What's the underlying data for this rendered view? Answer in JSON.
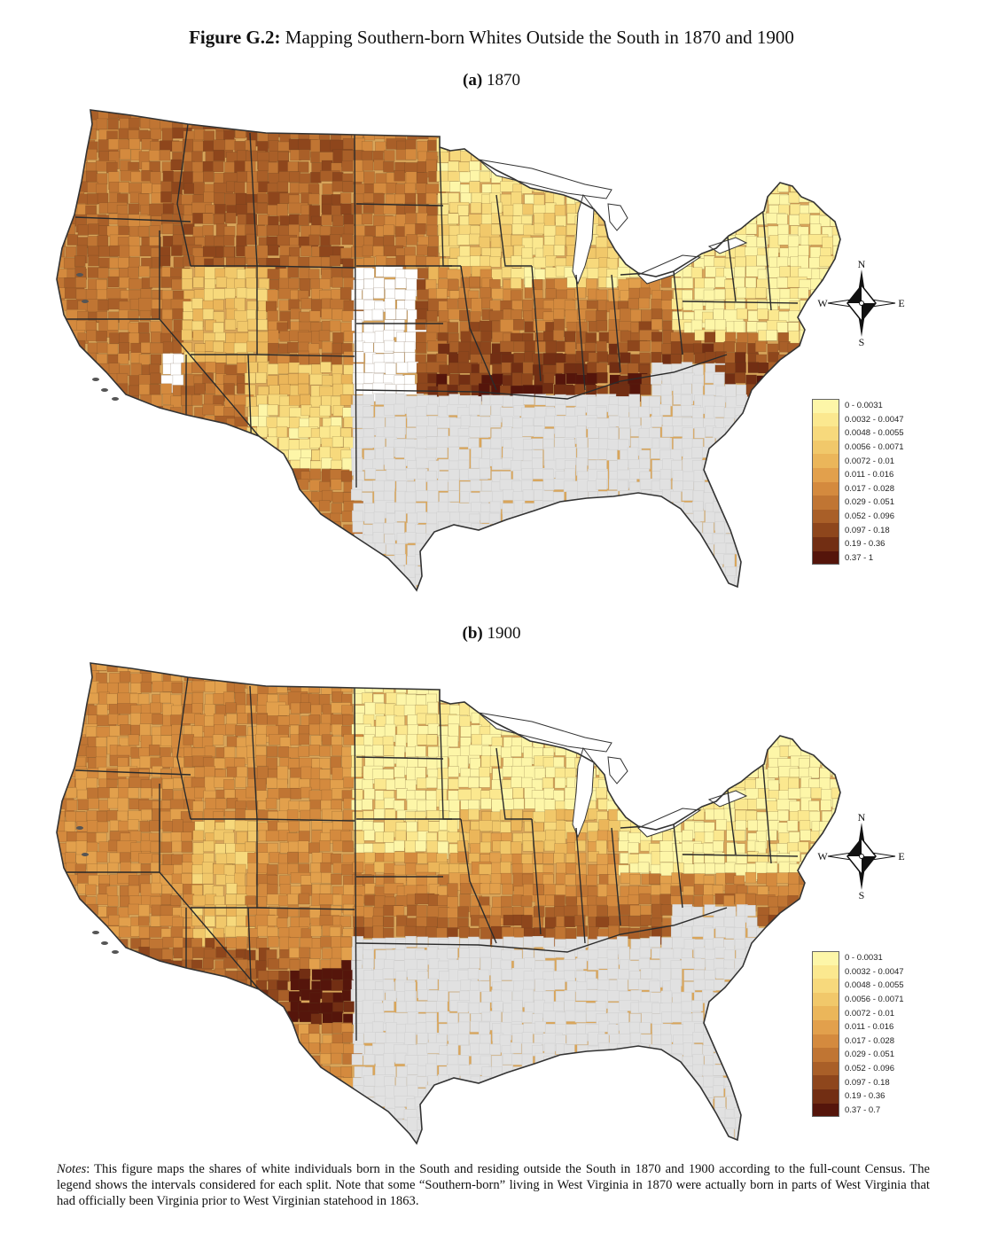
{
  "figure": {
    "label": "Figure G.2:",
    "title": "Mapping Southern-born Whites Outside the South in 1870 and 1900"
  },
  "panels": [
    {
      "label": "(a)",
      "year": "1870",
      "legend": [
        "0 - 0.0031",
        "0.0032 - 0.0047",
        "0.0048 - 0.0055",
        "0.0056 - 0.0071",
        "0.0072 - 0.01",
        "0.011 - 0.016",
        "0.017 - 0.028",
        "0.029 - 0.051",
        "0.052 - 0.096",
        "0.097 - 0.18",
        "0.19 - 0.36",
        "0.37 - 1"
      ]
    },
    {
      "label": "(b)",
      "year": "1900",
      "legend": [
        "0 - 0.0031",
        "0.0032 - 0.0047",
        "0.0048 - 0.0055",
        "0.0056 - 0.0071",
        "0.0072 - 0.01",
        "0.011 - 0.016",
        "0.017 - 0.028",
        "0.029 - 0.051",
        "0.052 - 0.096",
        "0.097 - 0.18",
        "0.19 - 0.36",
        "0.37 - 0.7"
      ]
    }
  ],
  "legend_colors": [
    "#fdf6a8",
    "#fbe88f",
    "#f7d97c",
    "#f1c86a",
    "#ebb65a",
    "#e2a04c",
    "#d48a3e",
    "#c07533",
    "#a95f28",
    "#8e461c",
    "#722e13",
    "#55150b"
  ],
  "compass": {
    "n": "N",
    "s": "S",
    "e": "E",
    "w": "W"
  },
  "colors": {
    "south": "#e1e1e1",
    "no_data": "#ffffff"
  },
  "notes": {
    "label": "Notes",
    "text": ": This figure maps the shares of white individuals born in the South and residing outside the South in 1870 and 1900 according to the full-count Census. The legend shows the intervals considered for each split. Note that some “Southern-born” living in West Virginia in 1870 were actually born in parts of West Virginia that had officially been Virginia prior to West Virginian statehood in 1863."
  }
}
